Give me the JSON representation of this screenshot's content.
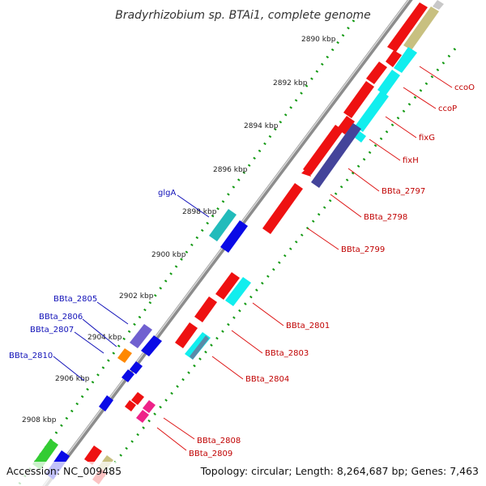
{
  "title": "Bradyrhizobium sp. BTAi1, complete genome",
  "footer": {
    "accession": "Accession: NC_009485",
    "topology": "Topology: circular; Length: 8,264,687 bp; Genes: 7,463"
  },
  "ticks": [
    "2890 kbp",
    "2892 kbp",
    "2894 kbp",
    "2896 kbp",
    "2898 kbp",
    "2900 kbp",
    "2902 kbp",
    "2904 kbp",
    "2906 kbp",
    "2908 kbp"
  ],
  "labels_left": [
    "glgA",
    "BBta_2805",
    "BBta_2806",
    "BBta_2807",
    "BBta_2810"
  ],
  "labels_right": [
    "ccoO",
    "ccoP",
    "fixG",
    "fixH",
    "BBta_2797",
    "BBta_2798",
    "BBta_2799",
    "BBta_2801",
    "BBta_2803",
    "BBta_2804",
    "BBta_2808",
    "BBta_2809"
  ],
  "colors": {
    "red": "#ee1111",
    "cyan": "#11eeee",
    "khaki": "#c8c080",
    "indigo": "#44449a",
    "blue": "#0a0ae6",
    "teal": "#22bbbb",
    "violet": "#7060d0",
    "orange": "#ff8800",
    "pink": "#ee2288",
    "green": "#33cc33",
    "steel": "#5a8aa8",
    "backbone": "#8c8c8c",
    "dots": "#119911"
  }
}
